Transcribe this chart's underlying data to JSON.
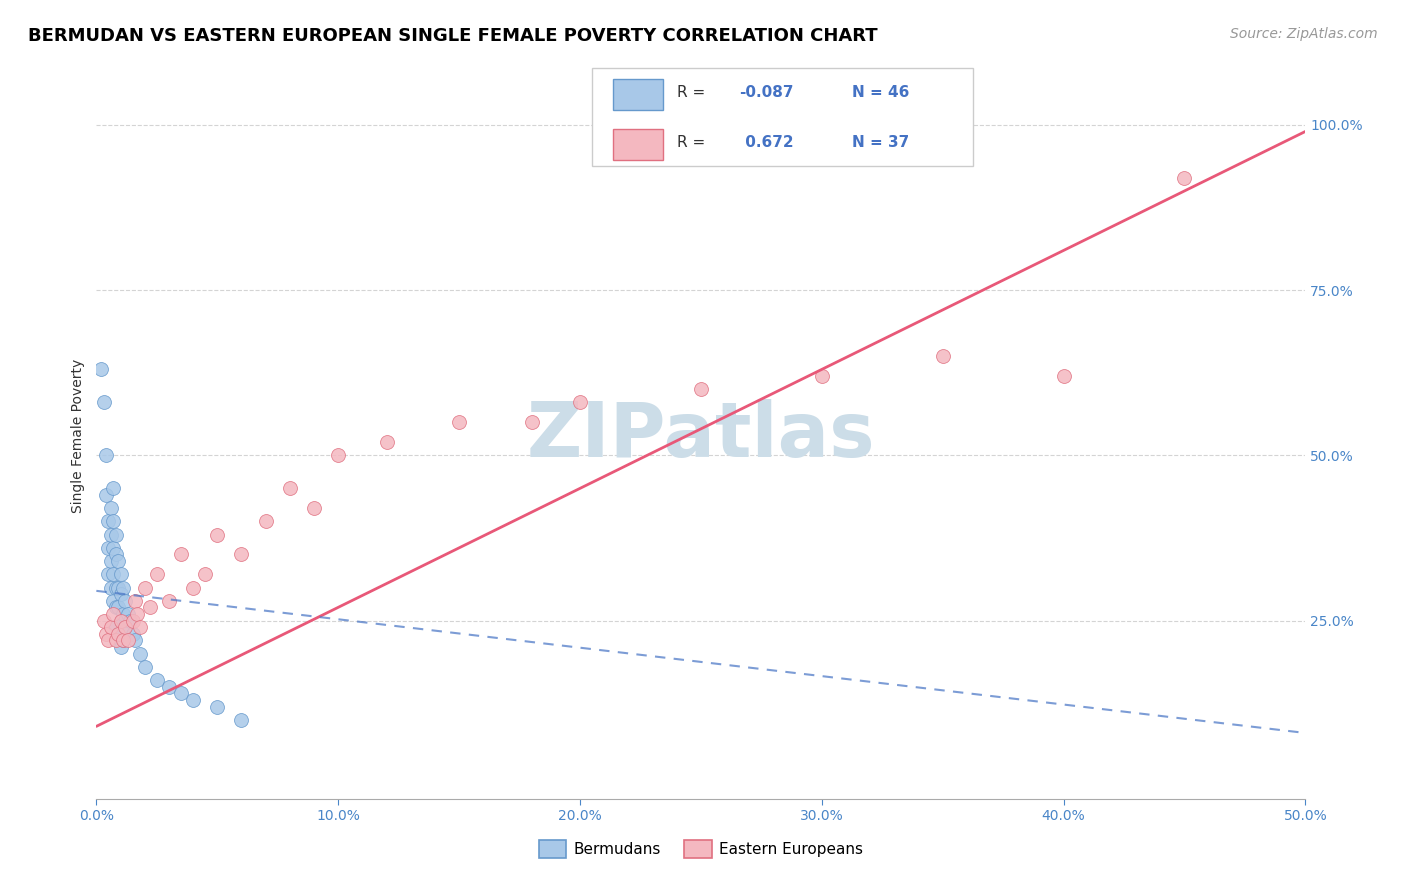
{
  "title": "BERMUDAN VS EASTERN EUROPEAN SINGLE FEMALE POVERTY CORRELATION CHART",
  "source": "Source: ZipAtlas.com",
  "ylabel_label": "Single Female Poverty",
  "xlim": [
    0.0,
    0.5
  ],
  "ylim": [
    -0.02,
    1.08
  ],
  "xticks": [
    0.0,
    0.1,
    0.2,
    0.3,
    0.4,
    0.5
  ],
  "xtick_labels": [
    "0.0%",
    "10.0%",
    "20.0%",
    "30.0%",
    "40.0%",
    "50.0%"
  ],
  "yticks": [
    0.25,
    0.5,
    0.75,
    1.0
  ],
  "ytick_labels": [
    "25.0%",
    "50.0%",
    "75.0%",
    "100.0%"
  ],
  "color_bermudan_fill": "#a8c8e8",
  "color_bermudan_edge": "#6699cc",
  "color_eastern_fill": "#f4b8c0",
  "color_eastern_edge": "#e07080",
  "color_line_bermudan": "#4472c4",
  "color_line_eastern": "#e85878",
  "color_watermark": "#ccdde8",
  "background_color": "#ffffff",
  "grid_color": "#d0d0d0",
  "title_fontsize": 13,
  "axis_label_fontsize": 10,
  "tick_fontsize": 10,
  "legend_fontsize": 11,
  "source_fontsize": 10,
  "bermudan_x": [
    0.002,
    0.003,
    0.004,
    0.004,
    0.005,
    0.005,
    0.005,
    0.006,
    0.006,
    0.006,
    0.006,
    0.007,
    0.007,
    0.007,
    0.007,
    0.007,
    0.008,
    0.008,
    0.008,
    0.008,
    0.008,
    0.009,
    0.009,
    0.009,
    0.009,
    0.01,
    0.01,
    0.01,
    0.01,
    0.011,
    0.011,
    0.011,
    0.012,
    0.012,
    0.013,
    0.014,
    0.015,
    0.016,
    0.018,
    0.02,
    0.025,
    0.03,
    0.035,
    0.04,
    0.05,
    0.06
  ],
  "bermudan_y": [
    0.63,
    0.58,
    0.5,
    0.44,
    0.4,
    0.36,
    0.32,
    0.42,
    0.38,
    0.34,
    0.3,
    0.45,
    0.4,
    0.36,
    0.32,
    0.28,
    0.38,
    0.35,
    0.3,
    0.27,
    0.24,
    0.34,
    0.3,
    0.27,
    0.23,
    0.32,
    0.29,
    0.25,
    0.21,
    0.3,
    0.26,
    0.22,
    0.28,
    0.24,
    0.26,
    0.25,
    0.23,
    0.22,
    0.2,
    0.18,
    0.16,
    0.15,
    0.14,
    0.13,
    0.12,
    0.1
  ],
  "eastern_x": [
    0.003,
    0.004,
    0.005,
    0.006,
    0.007,
    0.008,
    0.009,
    0.01,
    0.011,
    0.012,
    0.013,
    0.015,
    0.016,
    0.017,
    0.018,
    0.02,
    0.022,
    0.025,
    0.03,
    0.035,
    0.04,
    0.045,
    0.05,
    0.06,
    0.07,
    0.08,
    0.09,
    0.1,
    0.12,
    0.15,
    0.18,
    0.2,
    0.25,
    0.3,
    0.35,
    0.4,
    0.45
  ],
  "eastern_y": [
    0.25,
    0.23,
    0.22,
    0.24,
    0.26,
    0.22,
    0.23,
    0.25,
    0.22,
    0.24,
    0.22,
    0.25,
    0.28,
    0.26,
    0.24,
    0.3,
    0.27,
    0.32,
    0.28,
    0.35,
    0.3,
    0.32,
    0.38,
    0.35,
    0.4,
    0.45,
    0.42,
    0.5,
    0.52,
    0.55,
    0.55,
    0.58,
    0.6,
    0.62,
    0.65,
    0.62,
    0.92
  ],
  "line_eastern_x0": 0.0,
  "line_eastern_y0": 0.09,
  "line_eastern_x1": 0.5,
  "line_eastern_y1": 0.99,
  "line_bermudan_x0": 0.0,
  "line_bermudan_y0": 0.295,
  "line_bermudan_x1": 0.5,
  "line_bermudan_y1": 0.08
}
